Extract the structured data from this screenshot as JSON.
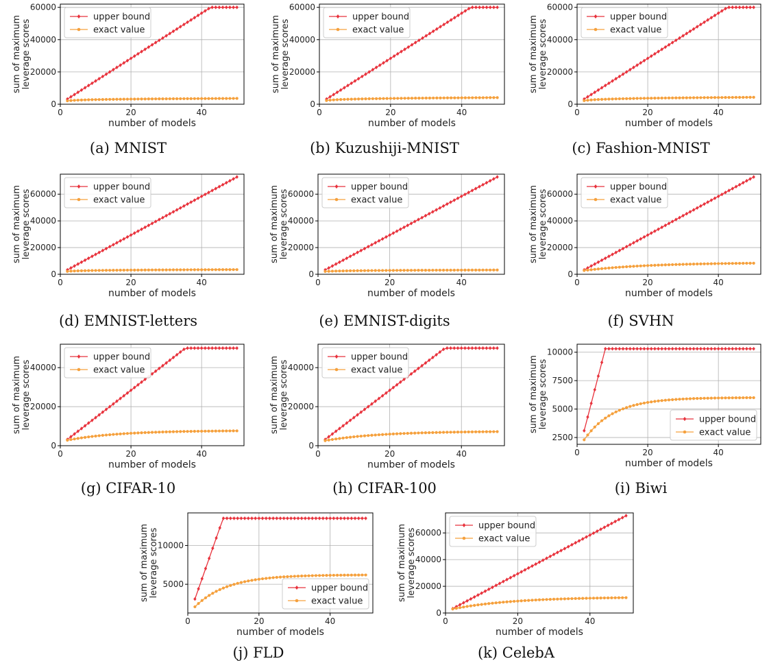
{
  "legend_labels": {
    "upper": "upper bound",
    "exact": "exact value"
  },
  "colors": {
    "upper": "#e8323c",
    "exact": "#f5a03c"
  },
  "chart_data": [
    {
      "type": "line",
      "caption": "(a) MNIST",
      "xlabel": "number of models",
      "ylabel": "sum of maximum leverage scores",
      "xlim": [
        0,
        52
      ],
      "ylim": [
        0,
        62000
      ],
      "xticks": [
        0,
        20,
        40
      ],
      "yticks": [
        0,
        20000,
        40000,
        60000
      ],
      "legend": "top-left",
      "grid": true,
      "series": [
        {
          "name": "upper bound",
          "gen": "linear_cap",
          "params": {
            "x0": 2,
            "x1": 50,
            "slope": 1400,
            "cap": 60000
          }
        },
        {
          "name": "exact value",
          "gen": "log",
          "params": {
            "x0": 2,
            "x1": 50,
            "start": 2100,
            "end": 3600
          }
        }
      ]
    },
    {
      "type": "line",
      "caption": "(b) Kuzushiji-MNIST",
      "xlabel": "number of models",
      "ylabel": "sum of maximum leverage scores",
      "xlim": [
        0,
        52
      ],
      "ylim": [
        0,
        62000
      ],
      "xticks": [
        0,
        20,
        40
      ],
      "yticks": [
        0,
        20000,
        40000,
        60000
      ],
      "legend": "top-left",
      "grid": true,
      "series": [
        {
          "name": "upper bound",
          "gen": "linear_cap",
          "params": {
            "x0": 2,
            "x1": 50,
            "slope": 1400,
            "cap": 60000
          }
        },
        {
          "name": "exact value",
          "gen": "log",
          "params": {
            "x0": 2,
            "x1": 50,
            "start": 2300,
            "end": 4100
          }
        }
      ]
    },
    {
      "type": "line",
      "caption": "(c) Fashion-MNIST",
      "xlabel": "number of models",
      "ylabel": "sum of maximum leverage scores",
      "xlim": [
        0,
        52
      ],
      "ylim": [
        0,
        62000
      ],
      "xticks": [
        0,
        20,
        40
      ],
      "yticks": [
        0,
        20000,
        40000,
        60000
      ],
      "legend": "top-left",
      "grid": true,
      "series": [
        {
          "name": "upper bound",
          "gen": "linear_cap",
          "params": {
            "x0": 2,
            "x1": 50,
            "slope": 1400,
            "cap": 60000
          }
        },
        {
          "name": "exact value",
          "gen": "log",
          "params": {
            "x0": 2,
            "x1": 50,
            "start": 2200,
            "end": 4300
          }
        }
      ]
    },
    {
      "type": "line",
      "caption": "(d) EMNIST-letters",
      "xlabel": "number of models",
      "ylabel": "sum of maximum leverage scores",
      "xlim": [
        0,
        52
      ],
      "ylim": [
        0,
        75000
      ],
      "xticks": [
        0,
        20,
        40
      ],
      "yticks": [
        0,
        20000,
        40000,
        60000
      ],
      "legend": "top-left",
      "grid": true,
      "series": [
        {
          "name": "upper bound",
          "gen": "linear_cap",
          "params": {
            "x0": 2,
            "x1": 50,
            "slope": 1450,
            "cap": 73000
          }
        },
        {
          "name": "exact value",
          "gen": "log",
          "params": {
            "x0": 2,
            "x1": 50,
            "start": 2200,
            "end": 3500
          }
        }
      ]
    },
    {
      "type": "line",
      "caption": "(e) EMNIST-digits",
      "xlabel": "number of models",
      "ylabel": "sum of maximum leverage scores",
      "xlim": [
        0,
        52
      ],
      "ylim": [
        0,
        75000
      ],
      "xticks": [
        0,
        20,
        40
      ],
      "yticks": [
        0,
        20000,
        40000,
        60000
      ],
      "legend": "top-left",
      "grid": true,
      "series": [
        {
          "name": "upper bound",
          "gen": "linear_cap",
          "params": {
            "x0": 2,
            "x1": 50,
            "slope": 1450,
            "cap": 73000
          }
        },
        {
          "name": "exact value",
          "gen": "log",
          "params": {
            "x0": 2,
            "x1": 50,
            "start": 2100,
            "end": 3200
          }
        }
      ]
    },
    {
      "type": "line",
      "caption": "(f) SVHN",
      "xlabel": "number of models",
      "ylabel": "sum of maximum leverage scores",
      "xlim": [
        0,
        52
      ],
      "ylim": [
        0,
        75000
      ],
      "xticks": [
        0,
        20,
        40
      ],
      "yticks": [
        0,
        20000,
        40000,
        60000
      ],
      "legend": "top-left",
      "grid": true,
      "series": [
        {
          "name": "upper bound",
          "gen": "linear_cap",
          "params": {
            "x0": 2,
            "x1": 50,
            "slope": 1450,
            "cap": 73000
          }
        },
        {
          "name": "exact value",
          "gen": "sat",
          "params": {
            "x0": 2,
            "x1": 50,
            "start": 2800,
            "end": 8300,
            "rate": 0.055
          }
        }
      ]
    },
    {
      "type": "line",
      "caption": "(g) CIFAR-10",
      "xlabel": "number of models",
      "ylabel": "sum of maximum leverage scores",
      "xlim": [
        0,
        52
      ],
      "ylim": [
        0,
        52000
      ],
      "xticks": [
        0,
        20,
        40
      ],
      "yticks": [
        0,
        20000,
        40000
      ],
      "legend": "top-left",
      "grid": true,
      "series": [
        {
          "name": "upper bound",
          "gen": "linear_cap",
          "params": {
            "x0": 2,
            "x1": 50,
            "slope": 1400,
            "cap": 50000
          }
        },
        {
          "name": "exact value",
          "gen": "sat",
          "params": {
            "x0": 2,
            "x1": 50,
            "start": 2800,
            "end": 7600,
            "rate": 0.07
          }
        }
      ]
    },
    {
      "type": "line",
      "caption": "(h) CIFAR-100",
      "xlabel": "number of models",
      "ylabel": "sum of maximum leverage scores",
      "xlim": [
        0,
        52
      ],
      "ylim": [
        0,
        52000
      ],
      "xticks": [
        0,
        20,
        40
      ],
      "yticks": [
        0,
        20000,
        40000
      ],
      "legend": "top-left",
      "grid": true,
      "series": [
        {
          "name": "upper bound",
          "gen": "linear_cap",
          "params": {
            "x0": 2,
            "x1": 50,
            "slope": 1400,
            "cap": 50000
          }
        },
        {
          "name": "exact value",
          "gen": "sat",
          "params": {
            "x0": 2,
            "x1": 50,
            "start": 2600,
            "end": 7200,
            "rate": 0.065
          }
        }
      ]
    },
    {
      "type": "line",
      "caption": "(i) Biwi",
      "xlabel": "number of models",
      "ylabel": "sum of maximum leverage scores",
      "xlim": [
        0,
        52
      ],
      "ylim": [
        1900,
        10700
      ],
      "xticks": [
        0,
        20,
        40
      ],
      "yticks": [
        2500,
        5000,
        7500,
        10000
      ],
      "legend": "bottom-right",
      "grid": true,
      "series": [
        {
          "name": "upper bound",
          "gen": "linear_cap",
          "params": {
            "x0": 2,
            "x1": 50,
            "slope": 1200,
            "cap": 10300,
            "base": 3100
          }
        },
        {
          "name": "exact value",
          "gen": "sat",
          "params": {
            "x0": 2,
            "x1": 50,
            "start": 2300,
            "end": 6000,
            "rate": 0.12
          }
        }
      ]
    },
    {
      "type": "line",
      "caption": "(j) FLD",
      "xlabel": "number of models",
      "ylabel": "sum of maximum leverage scores",
      "xlim": [
        0,
        52
      ],
      "ylim": [
        1300,
        14200
      ],
      "xticks": [
        0,
        20,
        40
      ],
      "yticks": [
        5000,
        10000
      ],
      "legend": "bottom-right",
      "grid": true,
      "series": [
        {
          "name": "upper bound",
          "gen": "linear_cap",
          "params": {
            "x0": 2,
            "x1": 50,
            "slope": 1310,
            "cap": 13500,
            "base": 3100
          }
        },
        {
          "name": "exact value",
          "gen": "sat",
          "params": {
            "x0": 2,
            "x1": 50,
            "start": 2100,
            "end": 6200,
            "rate": 0.11
          }
        }
      ]
    },
    {
      "type": "line",
      "caption": "(k) CelebA",
      "xlabel": "number of models",
      "ylabel": "sum of maximum leverage scores",
      "xlim": [
        0,
        52
      ],
      "ylim": [
        0,
        75000
      ],
      "xticks": [
        0,
        20,
        40
      ],
      "yticks": [
        0,
        20000,
        40000,
        60000
      ],
      "legend": "top-left",
      "grid": true,
      "series": [
        {
          "name": "upper bound",
          "gen": "linear_cap",
          "params": {
            "x0": 2,
            "x1": 50,
            "slope": 1450,
            "cap": 73000
          }
        },
        {
          "name": "exact value",
          "gen": "sat",
          "params": {
            "x0": 2,
            "x1": 50,
            "start": 3000,
            "end": 11500,
            "rate": 0.06
          }
        }
      ]
    }
  ]
}
